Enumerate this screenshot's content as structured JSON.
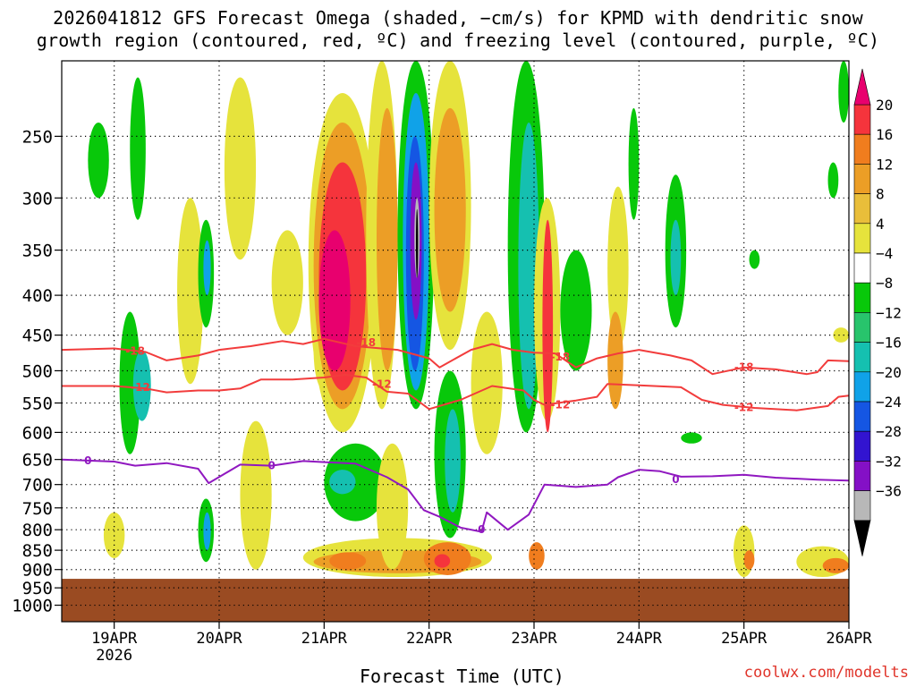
{
  "chart_data": {
    "type": "heatmap",
    "title_lines": [
      "2026041812 GFS Forecast Omega (shaded, −cm/s) for KPMD with dendritic snow",
      "growth region (contoured, red, ºC) and freezing level (contoured, purple, ºC)"
    ],
    "xlabel": "Forecast Time (UTC)",
    "ylabel": "",
    "credit": "coolwx.com/modelts",
    "y_axis": {
      "units": "hPa",
      "range": [
        200,
        1050
      ],
      "ticks": [
        250,
        300,
        350,
        400,
        450,
        500,
        550,
        600,
        650,
        700,
        750,
        800,
        850,
        900,
        950,
        1000
      ]
    },
    "x_axis": {
      "units": "days since 2026-04-19 00Z",
      "range": [
        -0.5,
        7.0
      ],
      "ticks": [
        {
          "value": 0,
          "label": "19APR",
          "sub": "2026"
        },
        {
          "value": 1,
          "label": "20APR",
          "sub": ""
        },
        {
          "value": 2,
          "label": "21APR",
          "sub": ""
        },
        {
          "value": 3,
          "label": "22APR",
          "sub": ""
        },
        {
          "value": 4,
          "label": "23APR",
          "sub": ""
        },
        {
          "value": 5,
          "label": "24APR",
          "sub": ""
        },
        {
          "value": 6,
          "label": "25APR",
          "sub": ""
        },
        {
          "value": 7,
          "label": "26APR",
          "sub": ""
        }
      ]
    },
    "grid": true,
    "colorbar": {
      "position": "right",
      "labels": [
        20,
        16,
        12,
        8,
        4,
        -4,
        -8,
        -12,
        -16,
        -20,
        -24,
        -28,
        -32,
        -36
      ],
      "colors": [
        "#e8006e",
        "#f5343c",
        "#f07d1e",
        "#ec9e26",
        "#e9be3a",
        "#e6e33c",
        "#ffffff",
        "#08c80a",
        "#28c46c",
        "#15c0b0",
        "#10a2e8",
        "#1556e3",
        "#3214d0",
        "#8410c6",
        "#b8b8b8",
        "#000000"
      ]
    },
    "surface_pressure_hpa": 925,
    "terrain_color": "#9a4b22",
    "dendritic_contours": [
      {
        "level": -18,
        "color": "#f23c3c",
        "points": [
          [
            -0.5,
            470
          ],
          [
            0,
            468
          ],
          [
            0.3,
            473
          ],
          [
            0.5,
            485
          ],
          [
            0.8,
            478
          ],
          [
            1.0,
            470
          ],
          [
            1.3,
            465
          ],
          [
            1.6,
            458
          ],
          [
            1.8,
            462
          ],
          [
            2.0,
            455
          ],
          [
            2.3,
            465
          ],
          [
            2.7,
            470
          ],
          [
            3.0,
            482
          ],
          [
            3.1,
            495
          ],
          [
            3.4,
            470
          ],
          [
            3.6,
            462
          ],
          [
            3.8,
            470
          ],
          [
            4.0,
            474
          ],
          [
            4.2,
            475
          ],
          [
            4.4,
            495
          ],
          [
            4.6,
            482
          ],
          [
            4.8,
            475
          ],
          [
            5.0,
            470
          ],
          [
            5.3,
            478
          ],
          [
            5.5,
            485
          ],
          [
            5.7,
            505
          ],
          [
            6.0,
            495
          ],
          [
            6.3,
            498
          ],
          [
            6.6,
            505
          ],
          [
            6.7,
            502
          ],
          [
            6.8,
            485
          ],
          [
            7.0,
            486
          ]
        ]
      },
      {
        "level": -12,
        "color": "#f23c3c",
        "points": [
          [
            -0.5,
            523
          ],
          [
            0,
            523
          ],
          [
            0.3,
            527
          ],
          [
            0.5,
            533
          ],
          [
            0.8,
            530
          ],
          [
            1.0,
            530
          ],
          [
            1.2,
            527
          ],
          [
            1.4,
            513
          ],
          [
            1.7,
            513
          ],
          [
            2.0,
            510
          ],
          [
            2.2,
            506
          ],
          [
            2.4,
            510
          ],
          [
            2.6,
            532
          ],
          [
            2.8,
            535
          ],
          [
            3.0,
            560
          ],
          [
            3.3,
            545
          ],
          [
            3.6,
            523
          ],
          [
            3.9,
            530
          ],
          [
            4.0,
            545
          ],
          [
            4.1,
            553
          ],
          [
            4.4,
            546
          ],
          [
            4.6,
            540
          ],
          [
            4.7,
            520
          ],
          [
            5.0,
            522
          ],
          [
            5.4,
            525
          ],
          [
            5.6,
            545
          ],
          [
            5.8,
            553
          ],
          [
            6.1,
            558
          ],
          [
            6.5,
            562
          ],
          [
            6.8,
            555
          ],
          [
            6.9,
            540
          ],
          [
            7.0,
            538
          ]
        ]
      }
    ],
    "freezing_contour": {
      "level": 0,
      "color": "#9018c0",
      "points": [
        [
          -0.5,
          650
        ],
        [
          0,
          654
        ],
        [
          0.2,
          662
        ],
        [
          0.5,
          657
        ],
        [
          0.8,
          668
        ],
        [
          0.9,
          697
        ],
        [
          1.2,
          660
        ],
        [
          1.5,
          662
        ],
        [
          1.8,
          653
        ],
        [
          2.0,
          655
        ],
        [
          2.3,
          658
        ],
        [
          2.6,
          685
        ],
        [
          2.8,
          710
        ],
        [
          2.95,
          755
        ],
        [
          3.1,
          770
        ],
        [
          3.3,
          795
        ],
        [
          3.5,
          805
        ],
        [
          3.55,
          760
        ],
        [
          3.75,
          800
        ],
        [
          3.95,
          765
        ],
        [
          4.1,
          700
        ],
        [
          4.4,
          705
        ],
        [
          4.7,
          700
        ],
        [
          4.8,
          685
        ],
        [
          5.0,
          670
        ],
        [
          5.2,
          673
        ],
        [
          5.4,
          684
        ],
        [
          5.7,
          683
        ],
        [
          6.0,
          680
        ],
        [
          6.3,
          686
        ],
        [
          6.7,
          690
        ],
        [
          7.0,
          692
        ]
      ]
    },
    "contour_labels": [
      {
        "text": "-18",
        "x": 0.2,
        "p": 472,
        "color": "#f23c3c"
      },
      {
        "text": "-12",
        "x": 0.25,
        "p": 525,
        "color": "#f23c3c"
      },
      {
        "text": "-18",
        "x": 2.4,
        "p": 460,
        "color": "#f23c3c"
      },
      {
        "text": "-12",
        "x": 2.55,
        "p": 520,
        "color": "#f23c3c"
      },
      {
        "text": "-18",
        "x": 4.25,
        "p": 480,
        "color": "#f23c3c"
      },
      {
        "text": "-12",
        "x": 4.25,
        "p": 553,
        "color": "#f23c3c"
      },
      {
        "text": "-18",
        "x": 6.0,
        "p": 495,
        "color": "#f23c3c"
      },
      {
        "text": "-12",
        "x": 6.0,
        "p": 557,
        "color": "#f23c3c"
      },
      {
        "text": "0",
        "x": -0.25,
        "p": 652,
        "color": "#9018c0"
      },
      {
        "text": "0",
        "x": 1.5,
        "p": 662,
        "color": "#9018c0"
      },
      {
        "text": "0",
        "x": 3.5,
        "p": 800,
        "color": "#9018c0"
      },
      {
        "text": "0",
        "x": 5.35,
        "p": 690,
        "color": "#9018c0"
      }
    ],
    "omega_blobs": [
      {
        "x": [
          0.05,
          0.25
        ],
        "p": [
          420,
          640
        ],
        "color": "#08c80a"
      },
      {
        "x": [
          0.18,
          0.35
        ],
        "p": [
          470,
          580
        ],
        "color": "#15c0b0"
      },
      {
        "x": [
          -0.25,
          -0.05
        ],
        "p": [
          240,
          300
        ],
        "color": "#08c80a"
      },
      {
        "x": [
          0.15,
          0.3
        ],
        "p": [
          210,
          320
        ],
        "color": "#08c80a"
      },
      {
        "x": [
          -0.1,
          0.1
        ],
        "p": [
          760,
          870
        ],
        "color": "#e6e33c"
      },
      {
        "x": [
          0.6,
          0.85
        ],
        "p": [
          300,
          520
        ],
        "color": "#e6e33c"
      },
      {
        "x": [
          0.8,
          0.95
        ],
        "p": [
          320,
          440
        ],
        "color": "#08c80a"
      },
      {
        "x": [
          0.85,
          0.92
        ],
        "p": [
          340,
          400
        ],
        "color": "#10a2e8"
      },
      {
        "x": [
          0.8,
          0.95
        ],
        "p": [
          730,
          880
        ],
        "color": "#08c80a"
      },
      {
        "x": [
          0.85,
          0.92
        ],
        "p": [
          760,
          850
        ],
        "color": "#10a2e8"
      },
      {
        "x": [
          1.05,
          1.35
        ],
        "p": [
          210,
          360
        ],
        "color": "#e6e33c"
      },
      {
        "x": [
          1.2,
          1.5
        ],
        "p": [
          580,
          900
        ],
        "color": "#e6e33c"
      },
      {
        "x": [
          1.5,
          1.8
        ],
        "p": [
          330,
          450
        ],
        "color": "#e6e33c"
      },
      {
        "x": [
          1.9,
          2.1
        ],
        "p": [
          420,
          530
        ],
        "color": "#e6e33c"
      },
      {
        "x": [
          1.85,
          2.5
        ],
        "p": [
          220,
          600
        ],
        "color": "#e6e33c"
      },
      {
        "x": [
          1.9,
          2.45
        ],
        "p": [
          240,
          560
        ],
        "color": "#ec9e26"
      },
      {
        "x": [
          1.95,
          2.4
        ],
        "p": [
          270,
          530
        ],
        "color": "#f5343c"
      },
      {
        "x": [
          1.95,
          2.25
        ],
        "p": [
          330,
          500
        ],
        "color": "#e8006e"
      },
      {
        "x": [
          2.4,
          2.7
        ],
        "p": [
          200,
          560
        ],
        "color": "#e6e33c"
      },
      {
        "x": [
          2.5,
          2.7
        ],
        "p": [
          230,
          500
        ],
        "color": "#ec9e26"
      },
      {
        "x": [
          2.7,
          3.05
        ],
        "p": [
          200,
          560
        ],
        "color": "#08c80a"
      },
      {
        "x": [
          2.75,
          3.0
        ],
        "p": [
          220,
          530
        ],
        "color": "#10a2e8"
      },
      {
        "x": [
          2.78,
          2.95
        ],
        "p": [
          250,
          500
        ],
        "color": "#1556e3"
      },
      {
        "x": [
          2.82,
          2.93
        ],
        "p": [
          270,
          430
        ],
        "color": "#8410c6"
      },
      {
        "x": [
          2.86,
          2.91
        ],
        "p": [
          300,
          380
        ],
        "color": "#b8b8b8"
      },
      {
        "x": [
          2.875,
          2.895
        ],
        "p": [
          310,
          380
        ],
        "color": "#000000"
      },
      {
        "x": [
          3.0,
          3.4
        ],
        "p": [
          200,
          470
        ],
        "color": "#e6e33c"
      },
      {
        "x": [
          3.05,
          3.35
        ],
        "p": [
          230,
          420
        ],
        "color": "#ec9e26"
      },
      {
        "x": [
          3.05,
          3.35
        ],
        "p": [
          500,
          820
        ],
        "color": "#08c80a"
      },
      {
        "x": [
          3.15,
          3.3
        ],
        "p": [
          560,
          760
        ],
        "color": "#15c0b0"
      },
      {
        "x": [
          3.4,
          3.7
        ],
        "p": [
          420,
          640
        ],
        "color": "#e6e33c"
      },
      {
        "x": [
          3.75,
          4.1
        ],
        "p": [
          200,
          600
        ],
        "color": "#08c80a"
      },
      {
        "x": [
          3.85,
          4.05
        ],
        "p": [
          240,
          560
        ],
        "color": "#15c0b0"
      },
      {
        "x": [
          4.0,
          4.25
        ],
        "p": [
          300,
          580
        ],
        "color": "#e6e33c"
      },
      {
        "x": [
          4.08,
          4.18
        ],
        "p": [
          320,
          600
        ],
        "color": "#f5343c"
      },
      {
        "x": [
          4.25,
          4.55
        ],
        "p": [
          350,
          500
        ],
        "color": "#08c80a"
      },
      {
        "x": [
          4.7,
          4.9
        ],
        "p": [
          290,
          470
        ],
        "color": "#e6e33c"
      },
      {
        "x": [
          4.9,
          5.0
        ],
        "p": [
          230,
          320
        ],
        "color": "#08c80a"
      },
      {
        "x": [
          5.25,
          5.45
        ],
        "p": [
          280,
          440
        ],
        "color": "#08c80a"
      },
      {
        "x": [
          5.3,
          5.4
        ],
        "p": [
          320,
          400
        ],
        "color": "#15c0b0"
      },
      {
        "x": [
          4.7,
          4.85
        ],
        "p": [
          420,
          560
        ],
        "color": "#ec9e26"
      },
      {
        "x": [
          6.85,
          7.0
        ],
        "p": [
          440,
          460
        ],
        "color": "#e6e33c"
      },
      {
        "x": [
          6.9,
          7.0
        ],
        "p": [
          200,
          240
        ],
        "color": "#08c80a"
      },
      {
        "x": [
          6.8,
          6.9
        ],
        "p": [
          270,
          300
        ],
        "color": "#08c80a"
      },
      {
        "x": [
          5.4,
          5.6
        ],
        "p": [
          600,
          620
        ],
        "color": "#08c80a"
      },
      {
        "x": [
          6.05,
          6.15
        ],
        "p": [
          350,
          370
        ],
        "color": "#08c80a"
      },
      {
        "x": [
          1.8,
          3.6
        ],
        "p": [
          820,
          920
        ],
        "color": "#e6e33c"
      },
      {
        "x": [
          1.9,
          3.5
        ],
        "p": [
          850,
          910
        ],
        "color": "#ec9e26"
      },
      {
        "x": [
          2.95,
          3.4
        ],
        "p": [
          830,
          915
        ],
        "color": "#f07d1e"
      },
      {
        "x": [
          3.05,
          3.2
        ],
        "p": [
          860,
          895
        ],
        "color": "#f5343c"
      },
      {
        "x": [
          2.05,
          2.4
        ],
        "p": [
          855,
          900
        ],
        "color": "#f07d1e"
      },
      {
        "x": [
          3.95,
          4.1
        ],
        "p": [
          830,
          900
        ],
        "color": "#f07d1e"
      },
      {
        "x": [
          5.9,
          6.1
        ],
        "p": [
          790,
          920
        ],
        "color": "#e6e33c"
      },
      {
        "x": [
          6.0,
          6.1
        ],
        "p": [
          850,
          900
        ],
        "color": "#f07d1e"
      },
      {
        "x": [
          6.5,
          7.0
        ],
        "p": [
          840,
          920
        ],
        "color": "#e6e33c"
      },
      {
        "x": [
          6.75,
          7.0
        ],
        "p": [
          870,
          910
        ],
        "color": "#f07d1e"
      },
      {
        "x": [
          2.0,
          2.6
        ],
        "p": [
          620,
          780
        ],
        "color": "#08c80a"
      },
      {
        "x": [
          2.05,
          2.3
        ],
        "p": [
          670,
          720
        ],
        "color": "#15c0b0"
      },
      {
        "x": [
          2.5,
          2.8
        ],
        "p": [
          620,
          900
        ],
        "color": "#e6e33c"
      }
    ]
  }
}
